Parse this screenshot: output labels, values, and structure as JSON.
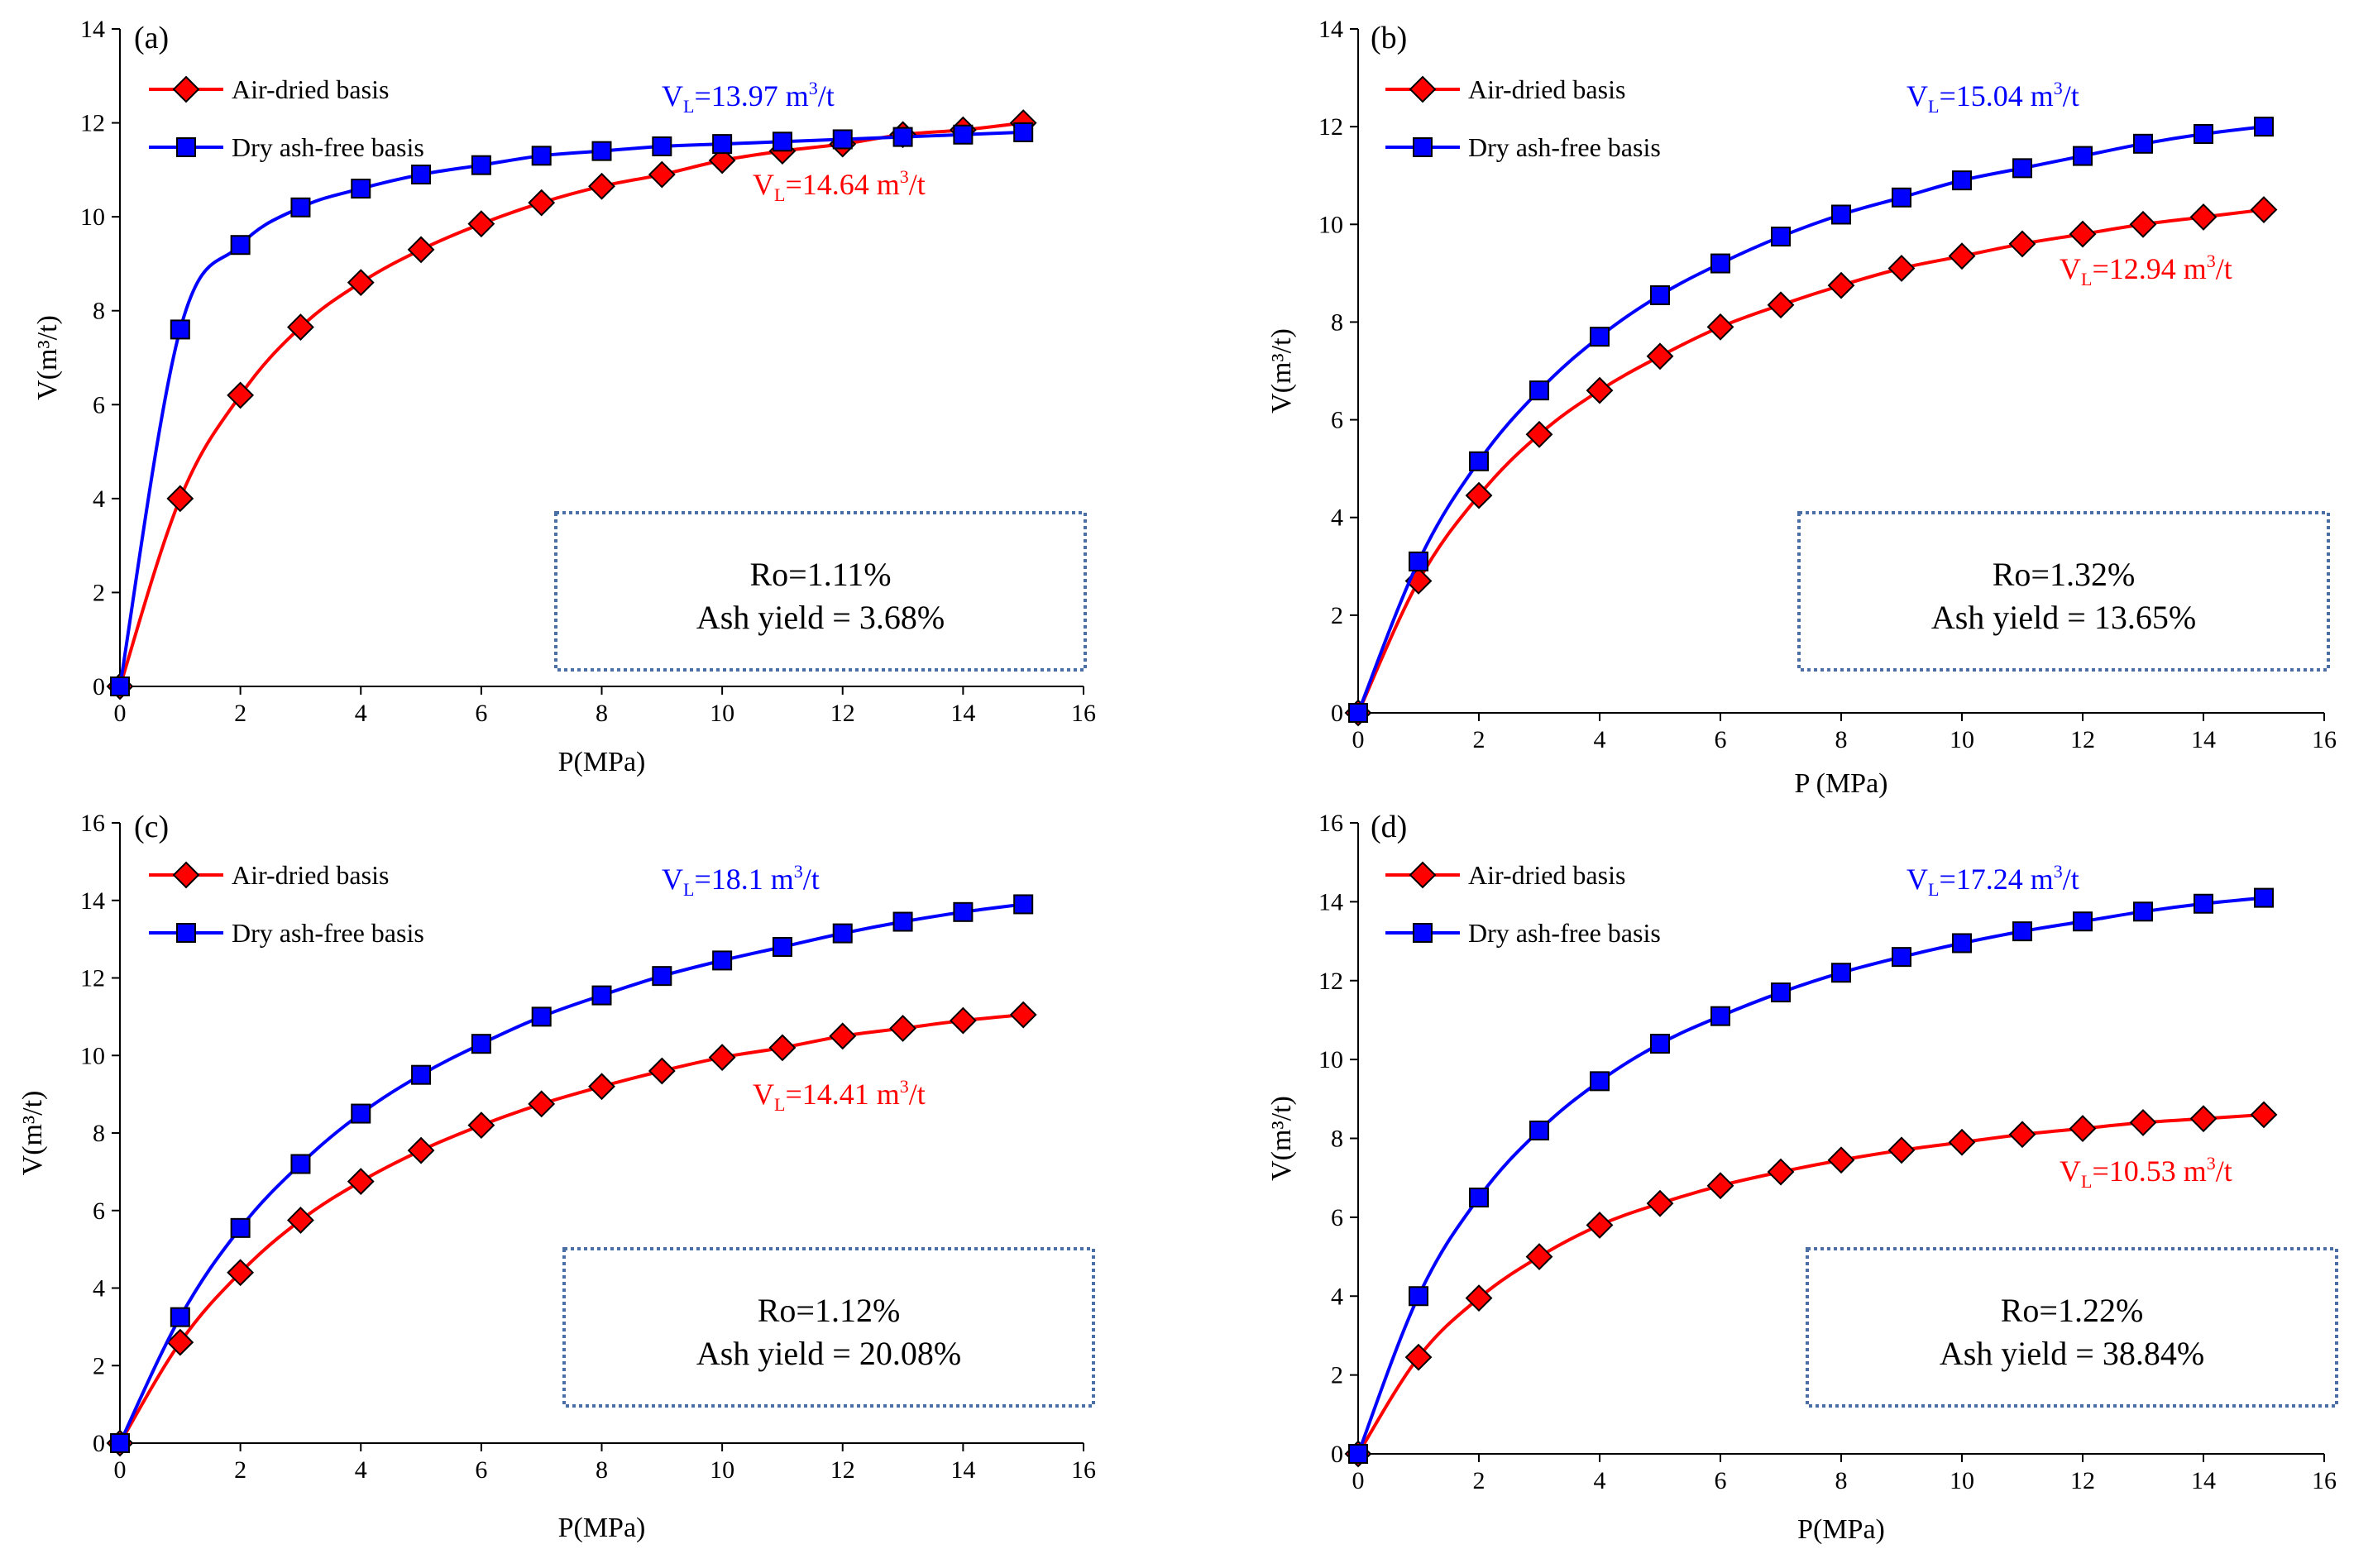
{
  "chart_data": [
    {
      "type": "line",
      "panel_label": "(a)",
      "xlabel": "P(MPa)",
      "ylabel": "V(m³/t)",
      "xlim": [
        0,
        16
      ],
      "ylim": [
        0,
        14
      ],
      "xticks": [
        0,
        2,
        4,
        6,
        8,
        10,
        12,
        14,
        16
      ],
      "yticks": [
        0,
        2,
        4,
        6,
        8,
        10,
        12,
        14
      ],
      "series": [
        {
          "name": "Air-dried basis",
          "color": "#ff0000",
          "marker": "diamond",
          "marker_color": "#ff0000",
          "x": [
            0,
            1,
            2,
            3,
            4,
            5,
            6,
            7,
            8,
            9,
            10,
            11,
            12,
            13,
            14,
            15
          ],
          "values": [
            0,
            4.0,
            6.2,
            7.65,
            8.6,
            9.3,
            9.85,
            10.3,
            10.65,
            10.9,
            11.2,
            11.4,
            11.55,
            11.75,
            11.85,
            12.0
          ]
        },
        {
          "name": "Dry ash-free basis",
          "color": "#0000ff",
          "marker": "square",
          "marker_color": "#0000ff",
          "x": [
            0,
            1,
            2,
            3,
            4,
            5,
            6,
            7,
            8,
            9,
            10,
            11,
            12,
            13,
            14,
            15
          ],
          "values": [
            0,
            7.6,
            9.4,
            10.2,
            10.6,
            10.9,
            11.1,
            11.3,
            11.4,
            11.5,
            11.55,
            11.6,
            11.65,
            11.7,
            11.75,
            11.8
          ]
        }
      ],
      "annotations": [
        {
          "base": "V",
          "sub": "L",
          "text": "=13.97 m",
          "sup": "3",
          "tail": "/t",
          "color": "#0000ff"
        },
        {
          "base": "V",
          "sub": "L",
          "text": "=14.64 m",
          "sup": "3",
          "tail": "/t",
          "color": "#ff0000"
        }
      ],
      "info": {
        "line1": "Ro=1.11%",
        "line2": "Ash yield = 3.68%"
      }
    },
    {
      "type": "line",
      "panel_label": "(b)",
      "xlabel": "P  (MPa)",
      "ylabel": "V(m³/t)",
      "xlim": [
        0,
        16
      ],
      "ylim": [
        0,
        14
      ],
      "xticks": [
        0,
        2,
        4,
        6,
        8,
        10,
        12,
        14,
        16
      ],
      "yticks": [
        0,
        2,
        4,
        6,
        8,
        10,
        12,
        14
      ],
      "series": [
        {
          "name": "Air-dried basis",
          "color": "#ff0000",
          "marker": "diamond",
          "marker_color": "#ff0000",
          "x": [
            0,
            1,
            2,
            3,
            4,
            5,
            6,
            7,
            8,
            9,
            10,
            11,
            12,
            13,
            14,
            15
          ],
          "values": [
            0,
            2.7,
            4.45,
            5.7,
            6.6,
            7.3,
            7.9,
            8.35,
            8.75,
            9.1,
            9.35,
            9.6,
            9.8,
            10.0,
            10.15,
            10.3
          ]
        },
        {
          "name": "Dry ash-free basis",
          "color": "#0000ff",
          "marker": "square",
          "marker_color": "#0000ff",
          "x": [
            0,
            1,
            2,
            3,
            4,
            5,
            6,
            7,
            8,
            9,
            10,
            11,
            12,
            13,
            14,
            15
          ],
          "values": [
            0,
            3.1,
            5.15,
            6.6,
            7.7,
            8.55,
            9.2,
            9.75,
            10.2,
            10.55,
            10.9,
            11.15,
            11.4,
            11.65,
            11.85,
            12.0
          ]
        }
      ],
      "annotations": [
        {
          "base": "V",
          "sub": "L",
          "text": "=15.04 m",
          "sup": "3",
          "tail": "/t",
          "color": "#0000ff"
        },
        {
          "base": "V",
          "sub": "L",
          "text": "=12.94 m",
          "sup": "3",
          "tail": "/t",
          "color": "#ff0000"
        }
      ],
      "info": {
        "line1": "Ro=1.32%",
        "line2": "Ash yield = 13.65%"
      }
    },
    {
      "type": "line",
      "panel_label": "(c)",
      "xlabel": "P(MPa)",
      "ylabel": "V(m³/t)",
      "xlim": [
        0,
        16
      ],
      "ylim": [
        0,
        16
      ],
      "xticks": [
        0,
        2,
        4,
        6,
        8,
        10,
        12,
        14,
        16
      ],
      "yticks": [
        0,
        2,
        4,
        6,
        8,
        10,
        12,
        14,
        16
      ],
      "series": [
        {
          "name": "Air-dried basis",
          "color": "#ff0000",
          "marker": "diamond",
          "marker_color": "#ff0000",
          "x": [
            0,
            1,
            2,
            3,
            4,
            5,
            6,
            7,
            8,
            9,
            10,
            11,
            12,
            13,
            14,
            15
          ],
          "values": [
            0,
            2.6,
            4.4,
            5.75,
            6.75,
            7.55,
            8.2,
            8.75,
            9.2,
            9.6,
            9.95,
            10.2,
            10.5,
            10.7,
            10.9,
            11.05
          ]
        },
        {
          "name": "Dry ash-free basis",
          "color": "#0000ff",
          "marker": "square",
          "marker_color": "#0000ff",
          "x": [
            0,
            1,
            2,
            3,
            4,
            5,
            6,
            7,
            8,
            9,
            10,
            11,
            12,
            13,
            14,
            15
          ],
          "values": [
            0,
            3.25,
            5.55,
            7.2,
            8.5,
            9.5,
            10.3,
            11.0,
            11.55,
            12.05,
            12.45,
            12.8,
            13.15,
            13.45,
            13.7,
            13.9
          ]
        }
      ],
      "annotations": [
        {
          "base": "V",
          "sub": "L",
          "text": "=18.1 m",
          "sup": "3",
          "tail": "/t",
          "color": "#0000ff"
        },
        {
          "base": "V",
          "sub": "L",
          "text": "=14.41 m",
          "sup": "3",
          "tail": "/t",
          "color": "#ff0000"
        }
      ],
      "info": {
        "line1": "Ro=1.12%",
        "line2": "Ash yield = 20.08%"
      }
    },
    {
      "type": "line",
      "panel_label": "(d)",
      "xlabel": "P(MPa)",
      "ylabel": "V(m³/t)",
      "xlim": [
        0,
        16
      ],
      "ylim": [
        0,
        16
      ],
      "xticks": [
        0,
        2,
        4,
        6,
        8,
        10,
        12,
        14,
        16
      ],
      "yticks": [
        0,
        2,
        4,
        6,
        8,
        10,
        12,
        14,
        16
      ],
      "series": [
        {
          "name": "Air-dried basis",
          "color": "#ff0000",
          "marker": "diamond",
          "marker_color": "#ff0000",
          "x": [
            0,
            1,
            2,
            3,
            4,
            5,
            6,
            7,
            8,
            9,
            10,
            11,
            12,
            13,
            14,
            15
          ],
          "values": [
            0,
            2.45,
            3.95,
            5.0,
            5.8,
            6.35,
            6.8,
            7.15,
            7.45,
            7.7,
            7.9,
            8.1,
            8.25,
            8.4,
            8.5,
            8.6
          ]
        },
        {
          "name": "Dry ash-free basis",
          "color": "#0000ff",
          "marker": "square",
          "marker_color": "#0000ff",
          "x": [
            0,
            1,
            2,
            3,
            4,
            5,
            6,
            7,
            8,
            9,
            10,
            11,
            12,
            13,
            14,
            15
          ],
          "values": [
            0,
            4.0,
            6.5,
            8.2,
            9.45,
            10.4,
            11.1,
            11.7,
            12.2,
            12.6,
            12.95,
            13.25,
            13.5,
            13.75,
            13.95,
            14.1
          ]
        }
      ],
      "annotations": [
        {
          "base": "V",
          "sub": "L",
          "text": "=17.24 m",
          "sup": "3",
          "tail": "/t",
          "color": "#0000ff"
        },
        {
          "base": "V",
          "sub": "L",
          "text": "=10.53 m",
          "sup": "3",
          "tail": "/t",
          "color": "#ff0000"
        }
      ],
      "info": {
        "line1": "Ro=1.22%",
        "line2": "Ash yield = 38.84%"
      }
    }
  ]
}
